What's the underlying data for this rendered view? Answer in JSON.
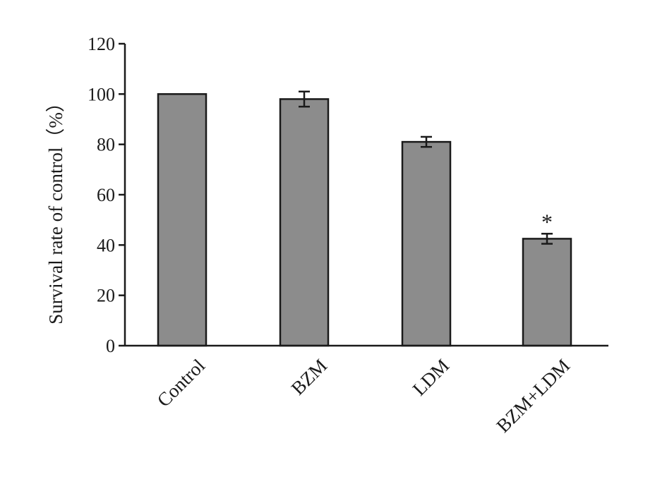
{
  "chart_data": {
    "type": "bar",
    "categories": [
      "Control",
      "BZM",
      "LDM",
      "BZM+LDM"
    ],
    "values": [
      100,
      98,
      81,
      42.5
    ],
    "errors": [
      0,
      3,
      2,
      2
    ],
    "annotations": [
      "",
      "",
      "",
      "*"
    ],
    "ylabel": "Survival rate of control（%）",
    "xlabel": "",
    "ylim": [
      0,
      120
    ],
    "yticks": [
      0,
      20,
      40,
      60,
      80,
      100,
      120
    ],
    "grid": false,
    "colors": {
      "bar": "#8c8c8c",
      "outline": "#1a1a1a"
    }
  }
}
